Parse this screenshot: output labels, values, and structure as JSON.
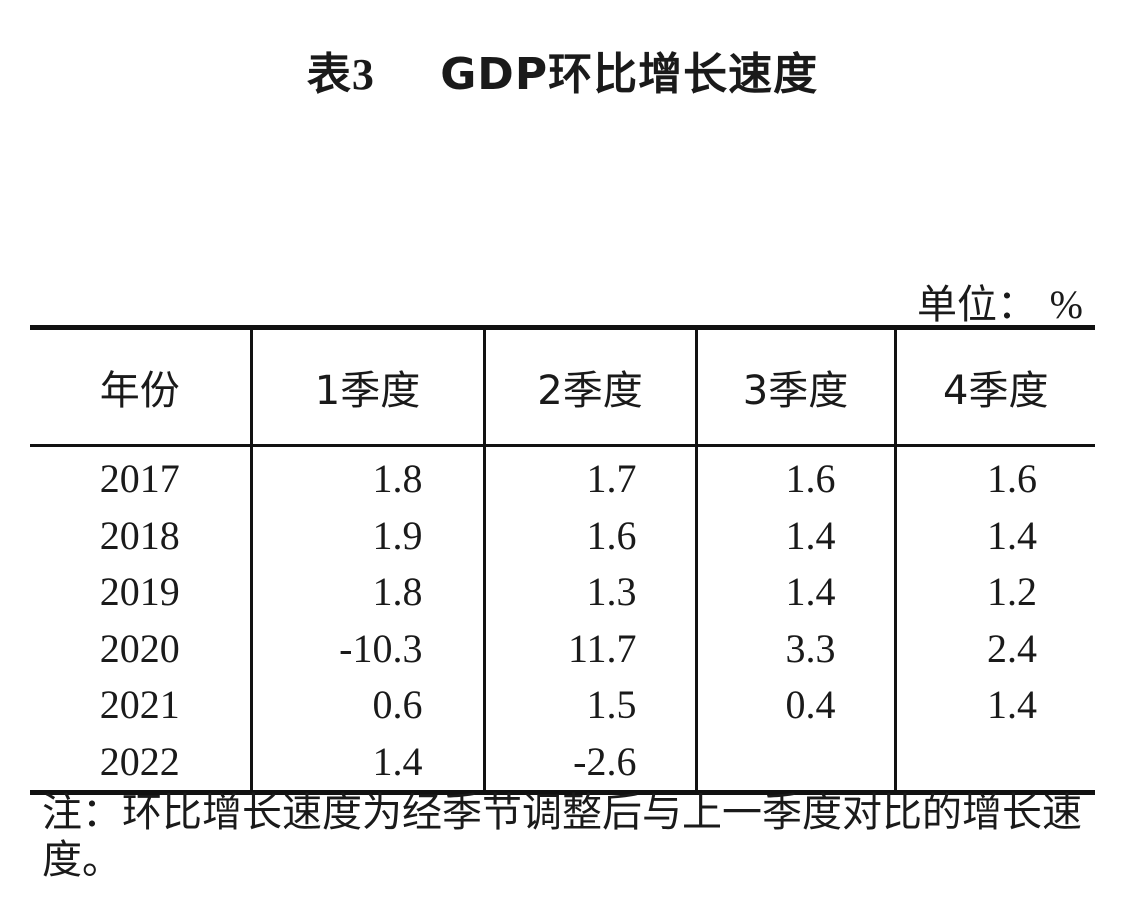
{
  "title": {
    "prefix": "表",
    "number": "3",
    "text": "GDP环比增长速度"
  },
  "unit": {
    "label": "单位：",
    "symbol": "%"
  },
  "table": {
    "headers": [
      "年份",
      "1季度",
      "2季度",
      "3季度",
      "4季度"
    ],
    "rows": [
      [
        "2017",
        "1.8",
        "1.7",
        "1.6",
        "1.6"
      ],
      [
        "2018",
        "1.9",
        "1.6",
        "1.4",
        "1.4"
      ],
      [
        "2019",
        "1.8",
        "1.3",
        "1.4",
        "1.2"
      ],
      [
        "2020",
        "-10.3",
        "11.7",
        "3.3",
        "2.4"
      ],
      [
        "2021",
        "0.6",
        "1.5",
        "0.4",
        "1.4"
      ],
      [
        "2022",
        "1.4",
        "-2.6",
        "",
        ""
      ]
    ]
  },
  "note": "注：环比增长速度为经季节调整后与上一季度对比的增长速度。"
}
